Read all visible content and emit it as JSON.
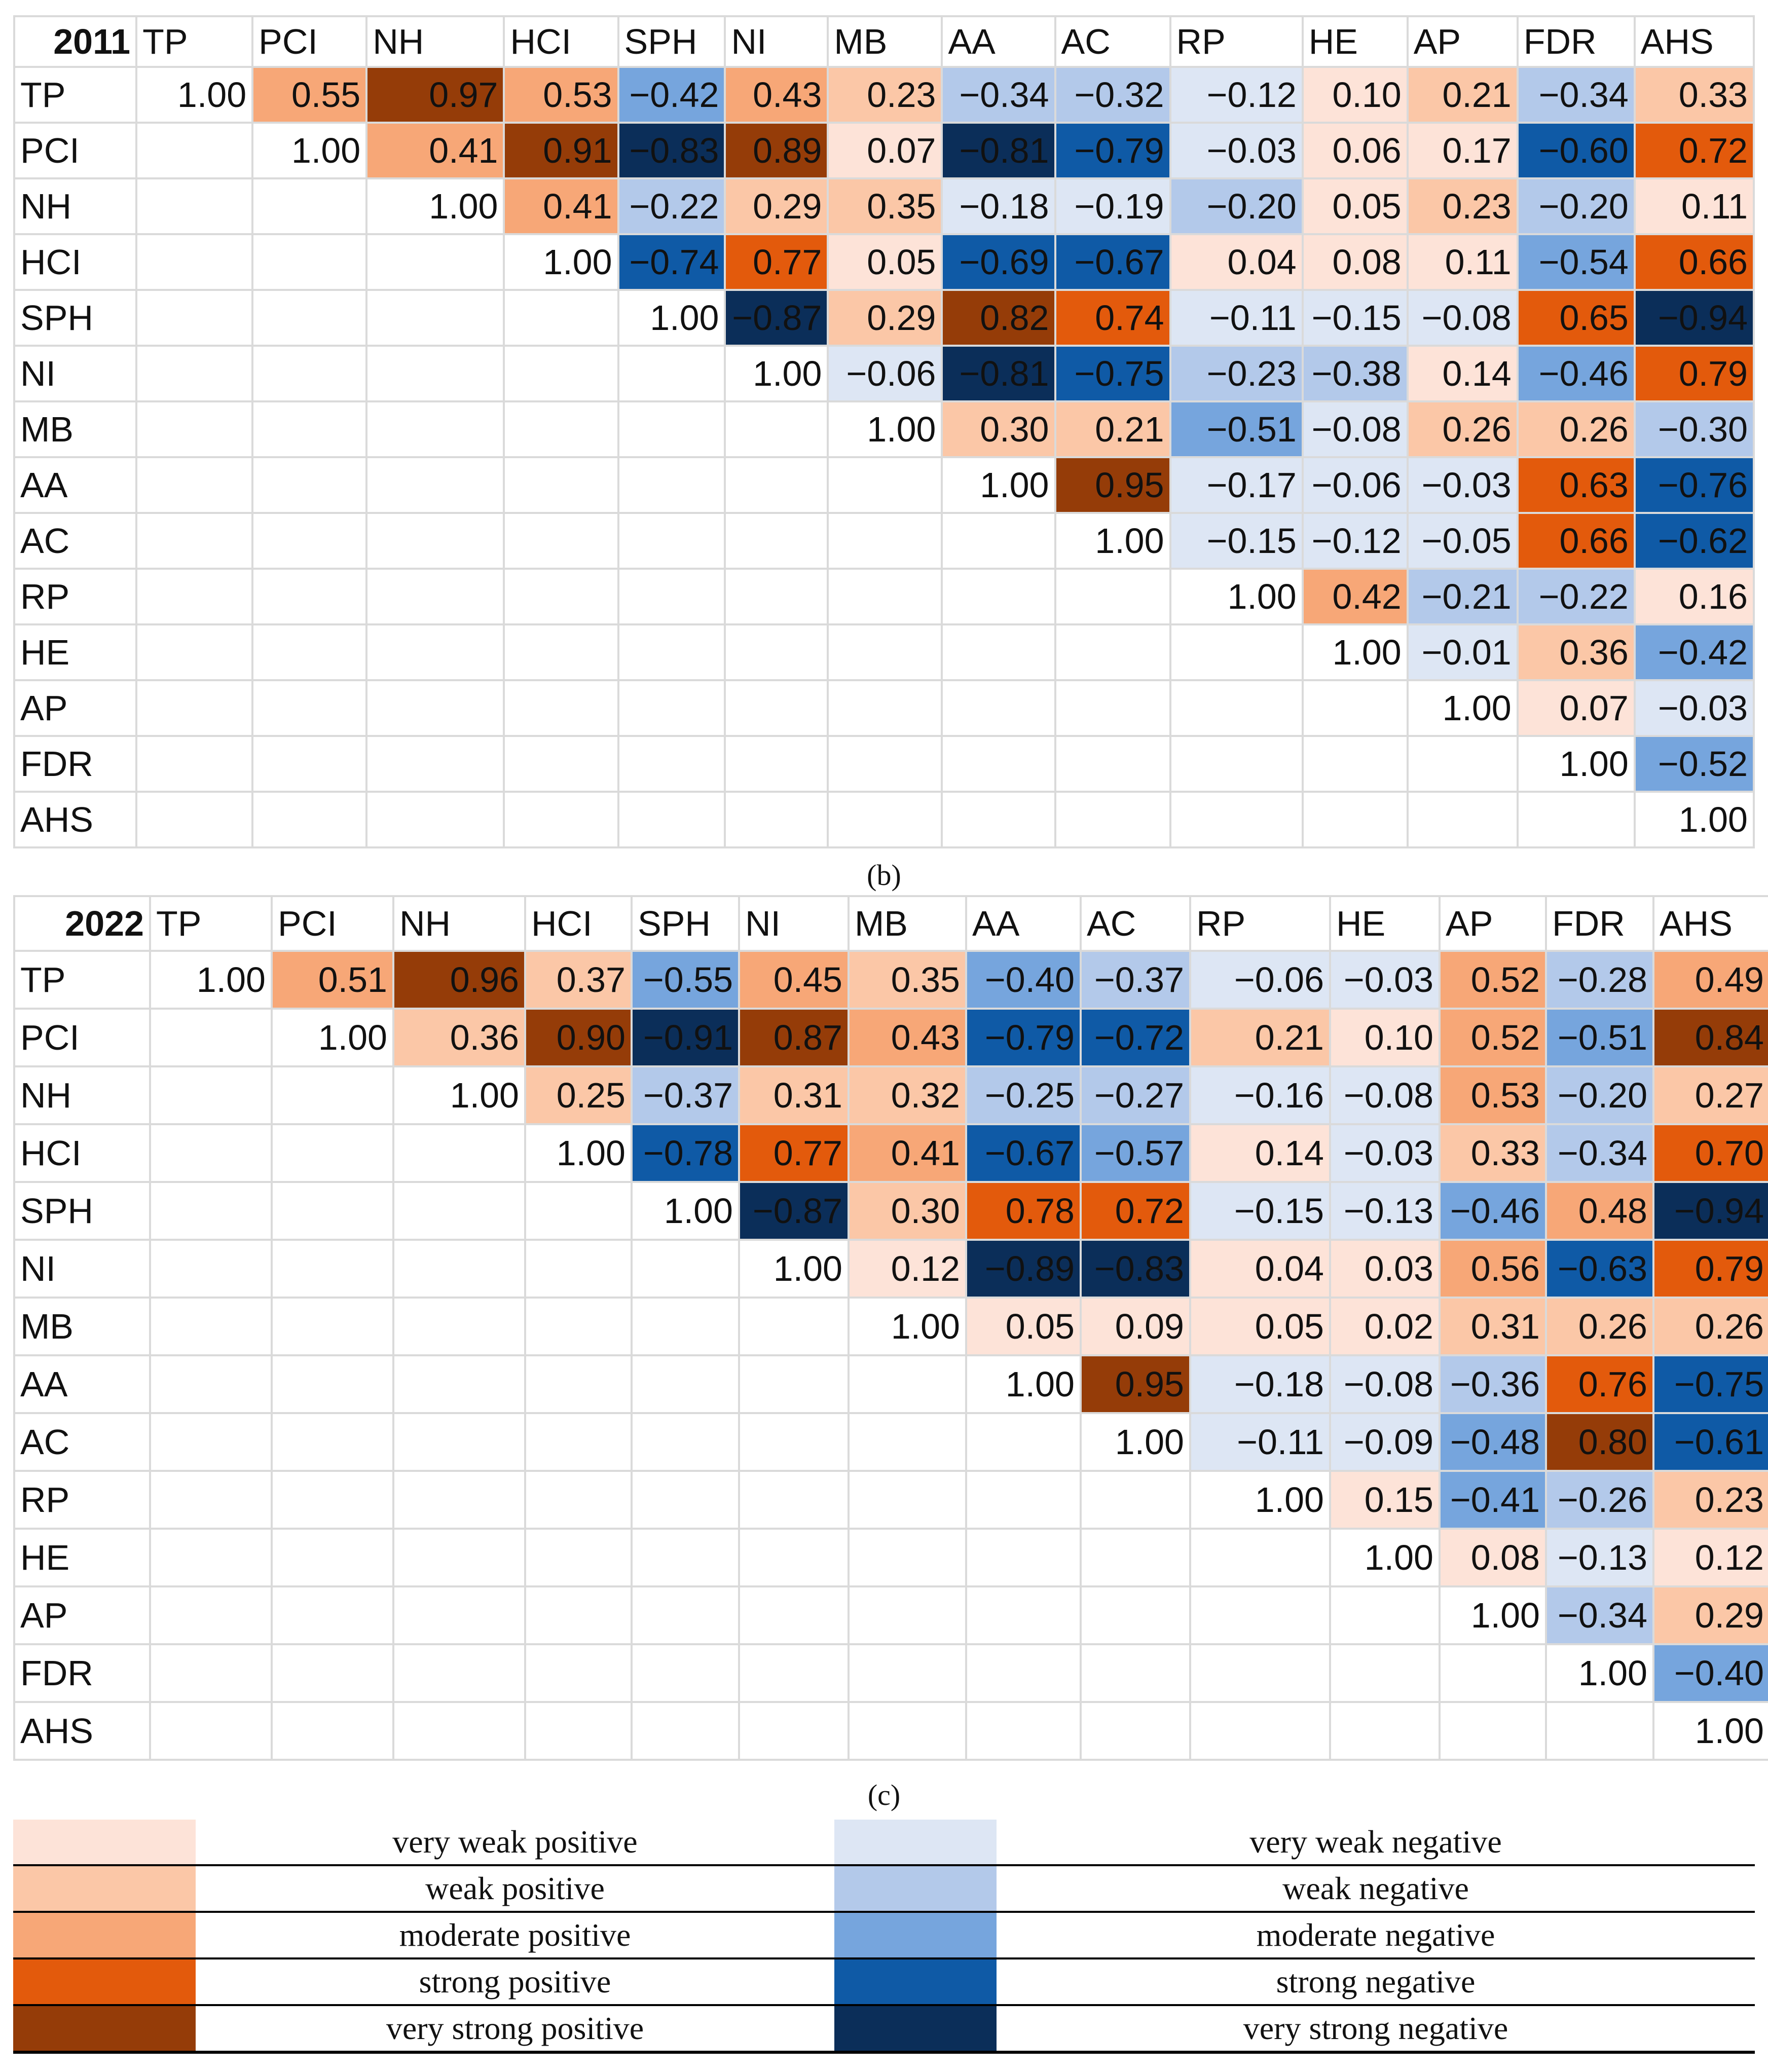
{
  "chart_data": [
    {
      "type": "table",
      "title": "2011",
      "columns": [
        "TP",
        "PCI",
        "NH",
        "HCI",
        "SPH",
        "NI",
        "MB",
        "AA",
        "AC",
        "RP",
        "HE",
        "AP",
        "FDR",
        "AHS"
      ],
      "rows": [
        "TP",
        "PCI",
        "NH",
        "HCI",
        "SPH",
        "NI",
        "MB",
        "AA",
        "AC",
        "RP",
        "HE",
        "AP",
        "FDR",
        "AHS"
      ],
      "values": [
        [
          "1.00",
          "0.55",
          "0.97",
          "0.53",
          "−0.42",
          "0.43",
          "0.23",
          "−0.34",
          "−0.32",
          "−0.12",
          "0.10",
          "0.21",
          "−0.34",
          "0.33"
        ],
        [
          "",
          "1.00",
          "0.41",
          "0.91",
          "−0.83",
          "0.89",
          "0.07",
          "−0.81",
          "−0.79",
          "−0.03",
          "0.06",
          "0.17",
          "−0.60",
          "0.72"
        ],
        [
          "",
          "",
          "1.00",
          "0.41",
          "−0.22",
          "0.29",
          "0.35",
          "−0.18",
          "−0.19",
          "−0.20",
          "0.05",
          "0.23",
          "−0.20",
          "0.11"
        ],
        [
          "",
          "",
          "",
          "1.00",
          "−0.74",
          "0.77",
          "0.05",
          "−0.69",
          "−0.67",
          "0.04",
          "0.08",
          "0.11",
          "−0.54",
          "0.66"
        ],
        [
          "",
          "",
          "",
          "",
          "1.00",
          "−0.87",
          "0.29",
          "0.82",
          "0.74",
          "−0.11",
          "−0.15",
          "−0.08",
          "0.65",
          "−0.94"
        ],
        [
          "",
          "",
          "",
          "",
          "",
          "1.00",
          "−0.06",
          "−0.81",
          "−0.75",
          "−0.23",
          "−0.38",
          "0.14",
          "−0.46",
          "0.79"
        ],
        [
          "",
          "",
          "",
          "",
          "",
          "",
          "1.00",
          "0.30",
          "0.21",
          "−0.51",
          "−0.08",
          "0.26",
          "0.26",
          "−0.30"
        ],
        [
          "",
          "",
          "",
          "",
          "",
          "",
          "",
          "1.00",
          "0.95",
          "−0.17",
          "−0.06",
          "−0.03",
          "0.63",
          "−0.76"
        ],
        [
          "",
          "",
          "",
          "",
          "",
          "",
          "",
          "",
          "1.00",
          "−0.15",
          "−0.12",
          "−0.05",
          "0.66",
          "−0.62"
        ],
        [
          "",
          "",
          "",
          "",
          "",
          "",
          "",
          "",
          "",
          "1.00",
          "0.42",
          "−0.21",
          "−0.22",
          "0.16"
        ],
        [
          "",
          "",
          "",
          "",
          "",
          "",
          "",
          "",
          "",
          "",
          "1.00",
          "−0.01",
          "0.36",
          "−0.42"
        ],
        [
          "",
          "",
          "",
          "",
          "",
          "",
          "",
          "",
          "",
          "",
          "",
          "1.00",
          "0.07",
          "−0.03"
        ],
        [
          "",
          "",
          "",
          "",
          "",
          "",
          "",
          "",
          "",
          "",
          "",
          "",
          "1.00",
          "−0.52"
        ],
        [
          "",
          "",
          "",
          "",
          "",
          "",
          "",
          "",
          "",
          "",
          "",
          "",
          "",
          "1.00"
        ]
      ],
      "caption": "(b)"
    },
    {
      "type": "table",
      "title": "2022",
      "columns": [
        "TP",
        "PCI",
        "NH",
        "HCI",
        "SPH",
        "NI",
        "MB",
        "AA",
        "AC",
        "RP",
        "HE",
        "AP",
        "FDR",
        "AHS"
      ],
      "rows": [
        "TP",
        "PCI",
        "NH",
        "HCI",
        "SPH",
        "NI",
        "MB",
        "AA",
        "AC",
        "RP",
        "HE",
        "AP",
        "FDR",
        "AHS"
      ],
      "values": [
        [
          "1.00",
          "0.51",
          "0.96",
          "0.37",
          "−0.55",
          "0.45",
          "0.35",
          "−0.40",
          "−0.37",
          "−0.06",
          "−0.03",
          "0.52",
          "−0.28",
          "0.49"
        ],
        [
          "",
          "1.00",
          "0.36",
          "0.90",
          "−0.91",
          "0.87",
          "0.43",
          "−0.79",
          "−0.72",
          "0.21",
          "0.10",
          "0.52",
          "−0.51",
          "0.84"
        ],
        [
          "",
          "",
          "1.00",
          "0.25",
          "−0.37",
          "0.31",
          "0.32",
          "−0.25",
          "−0.27",
          "−0.16",
          "−0.08",
          "0.53",
          "−0.20",
          "0.27"
        ],
        [
          "",
          "",
          "",
          "1.00",
          "−0.78",
          "0.77",
          "0.41",
          "−0.67",
          "−0.57",
          "0.14",
          "−0.03",
          "0.33",
          "−0.34",
          "0.70"
        ],
        [
          "",
          "",
          "",
          "",
          "1.00",
          "−0.87",
          "0.30",
          "0.78",
          "0.72",
          "−0.15",
          "−0.13",
          "−0.46",
          "0.48",
          "−0.94"
        ],
        [
          "",
          "",
          "",
          "",
          "",
          "1.00",
          "0.12",
          "−0.89",
          "−0.83",
          "0.04",
          "0.03",
          "0.56",
          "−0.63",
          "0.79"
        ],
        [
          "",
          "",
          "",
          "",
          "",
          "",
          "1.00",
          "0.05",
          "0.09",
          "0.05",
          "0.02",
          "0.31",
          "0.26",
          "0.26"
        ],
        [
          "",
          "",
          "",
          "",
          "",
          "",
          "",
          "1.00",
          "0.95",
          "−0.18",
          "−0.08",
          "−0.36",
          "0.76",
          "−0.75"
        ],
        [
          "",
          "",
          "",
          "",
          "",
          "",
          "",
          "",
          "1.00",
          "−0.11",
          "−0.09",
          "−0.48",
          "0.80",
          "−0.61"
        ],
        [
          "",
          "",
          "",
          "",
          "",
          "",
          "",
          "",
          "",
          "1.00",
          "0.15",
          "−0.41",
          "−0.26",
          "0.23"
        ],
        [
          "",
          "",
          "",
          "",
          "",
          "",
          "",
          "",
          "",
          "",
          "1.00",
          "0.08",
          "−0.13",
          "0.12"
        ],
        [
          "",
          "",
          "",
          "",
          "",
          "",
          "",
          "",
          "",
          "",
          "",
          "1.00",
          "−0.34",
          "0.29"
        ],
        [
          "",
          "",
          "",
          "",
          "",
          "",
          "",
          "",
          "",
          "",
          "",
          "",
          "1.00",
          "−0.40"
        ],
        [
          "",
          "",
          "",
          "",
          "",
          "",
          "",
          "",
          "",
          "",
          "",
          "",
          "",
          "1.00"
        ]
      ],
      "caption": "(c)"
    }
  ],
  "legend": {
    "positive": [
      {
        "label": "very weak positive",
        "color": "#fde3d8"
      },
      {
        "label": "weak positive",
        "color": "#fbc7a7"
      },
      {
        "label": "moderate positive",
        "color": "#f7a777"
      },
      {
        "label": "strong positive",
        "color": "#e35a0c"
      },
      {
        "label": "very strong positive",
        "color": "#953c08"
      }
    ],
    "negative": [
      {
        "label": "very weak negative",
        "color": "#dde6f4"
      },
      {
        "label": "weak negative",
        "color": "#b3c9ea"
      },
      {
        "label": "moderate negative",
        "color": "#76a5dd"
      },
      {
        "label": "strong negative",
        "color": "#0f5aa6"
      },
      {
        "label": "very strong negative",
        "color": "#0b2e59"
      }
    ]
  }
}
